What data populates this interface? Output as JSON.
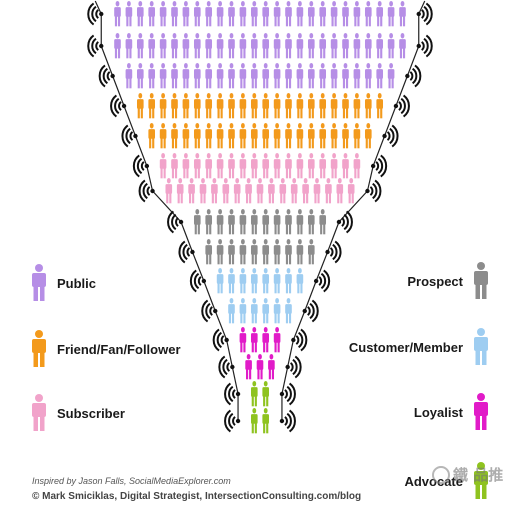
{
  "tiers": [
    {
      "name": "Public",
      "color": "#b68ee6",
      "rows": [
        26,
        26,
        24
      ]
    },
    {
      "name": "Friend/Fan/Follower",
      "color": "#f39a1c",
      "rows": [
        22,
        20
      ]
    },
    {
      "name": "Subscriber",
      "color": "#f1a3ca",
      "rows": [
        18,
        17
      ]
    },
    {
      "name": "Prospect",
      "color": "#8c8c8c",
      "rows": [
        12,
        10
      ]
    },
    {
      "name": "Customer/Member",
      "color": "#9ecdf1",
      "rows": [
        8,
        6
      ]
    },
    {
      "name": "Loyalist",
      "color": "#e11bc8",
      "rows": [
        4,
        3
      ]
    },
    {
      "name": "Advocate",
      "color": "#8fc31f",
      "rows": [
        2,
        2
      ]
    }
  ],
  "legend_left": [
    {
      "label": "Public",
      "color": "#b68ee6"
    },
    {
      "label": "Friend/Fan/Follower",
      "color": "#f39a1c"
    },
    {
      "label": "Subscriber",
      "color": "#f1a3ca"
    }
  ],
  "legend_right": [
    {
      "label": "Prospect",
      "color": "#8c8c8c"
    },
    {
      "label": "Customer/Member",
      "color": "#9ecdf1"
    },
    {
      "label": "Loyalist",
      "color": "#e11bc8"
    },
    {
      "label": "Advocate",
      "color": "#8fc31f"
    }
  ],
  "credits": {
    "inspired": "Inspired by Jason Falls, SocialMediaExplorer.com",
    "copyright": "© Mark Smiciklas, Digital Strategist, IntersectionConsulting.com/blog"
  },
  "watermark": "鐵 品推"
}
